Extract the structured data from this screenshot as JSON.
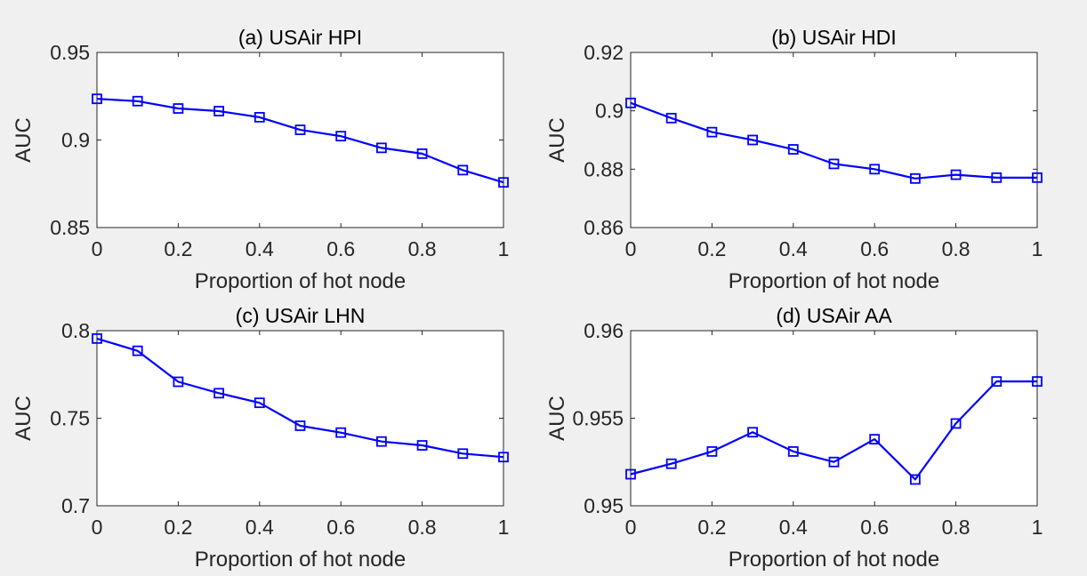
{
  "chart_data": [
    {
      "type": "line",
      "title": "(a) USAir HPI",
      "xlabel": "Proportion of hot node",
      "ylabel": "AUC",
      "xlim": [
        0,
        1
      ],
      "ylim": [
        0.85,
        0.95
      ],
      "xticks": [
        0,
        0.2,
        0.4,
        0.6,
        0.8,
        1
      ],
      "xtick_labels": [
        "0",
        "0.2",
        "0.4",
        "0.6",
        "0.8",
        "1"
      ],
      "yticks": [
        0.85,
        0.9,
        0.95
      ],
      "ytick_labels": [
        "0.85",
        "0.9",
        "0.95"
      ],
      "grid": false,
      "series": [
        {
          "x": [
            0,
            0.1,
            0.2,
            0.3,
            0.4,
            0.5,
            0.6,
            0.7,
            0.8,
            0.9,
            1
          ],
          "values": [
            0.9235,
            0.9222,
            0.918,
            0.9165,
            0.913,
            0.9058,
            0.9022,
            0.8955,
            0.8922,
            0.8828,
            0.8758
          ],
          "color": "#0000ff",
          "marker": "square"
        }
      ]
    },
    {
      "type": "line",
      "title": "(b) USAir HDI",
      "xlabel": "Proportion of hot node",
      "ylabel": "AUC",
      "xlim": [
        0,
        1
      ],
      "ylim": [
        0.86,
        0.92
      ],
      "xticks": [
        0,
        0.2,
        0.4,
        0.6,
        0.8,
        1
      ],
      "xtick_labels": [
        "0",
        "0.2",
        "0.4",
        "0.6",
        "0.8",
        "1"
      ],
      "yticks": [
        0.86,
        0.88,
        0.9,
        0.92
      ],
      "ytick_labels": [
        "0.86",
        "0.88",
        "0.9",
        "0.92"
      ],
      "grid": false,
      "series": [
        {
          "x": [
            0,
            0.1,
            0.2,
            0.3,
            0.4,
            0.5,
            0.6,
            0.7,
            0.8,
            0.9,
            1
          ],
          "values": [
            0.9027,
            0.8975,
            0.8927,
            0.89,
            0.8868,
            0.8818,
            0.88,
            0.8768,
            0.8781,
            0.8771,
            0.8771
          ],
          "color": "#0000ff",
          "marker": "square"
        }
      ]
    },
    {
      "type": "line",
      "title": "(c) USAir LHN",
      "xlabel": "Proportion of hot node",
      "ylabel": "AUC",
      "xlim": [
        0,
        1
      ],
      "ylim": [
        0.7,
        0.8
      ],
      "xticks": [
        0,
        0.2,
        0.4,
        0.6,
        0.8,
        1
      ],
      "xtick_labels": [
        "0",
        "0.2",
        "0.4",
        "0.6",
        "0.8",
        "1"
      ],
      "yticks": [
        0.7,
        0.75,
        0.8
      ],
      "ytick_labels": [
        "0.7",
        "0.75",
        "0.8"
      ],
      "grid": false,
      "series": [
        {
          "x": [
            0,
            0.1,
            0.2,
            0.3,
            0.4,
            0.5,
            0.6,
            0.7,
            0.8,
            0.9,
            1
          ],
          "values": [
            0.7955,
            0.7885,
            0.7708,
            0.7643,
            0.7588,
            0.7457,
            0.7418,
            0.7367,
            0.7345,
            0.7298,
            0.7278
          ],
          "color": "#0000ff",
          "marker": "square"
        }
      ]
    },
    {
      "type": "line",
      "title": "(d) USAir AA",
      "xlabel": "Proportion of hot node",
      "ylabel": "AUC",
      "xlim": [
        0,
        1
      ],
      "ylim": [
        0.95,
        0.96
      ],
      "xticks": [
        0,
        0.2,
        0.4,
        0.6,
        0.8,
        1
      ],
      "xtick_labels": [
        "0",
        "0.2",
        "0.4",
        "0.6",
        "0.8",
        "1"
      ],
      "yticks": [
        0.95,
        0.955,
        0.96
      ],
      "ytick_labels": [
        "0.95",
        "0.955",
        "0.96"
      ],
      "grid": false,
      "series": [
        {
          "x": [
            0,
            0.1,
            0.2,
            0.3,
            0.4,
            0.5,
            0.6,
            0.7,
            0.8,
            0.9,
            1
          ],
          "values": [
            0.9518,
            0.9524,
            0.9531,
            0.9542,
            0.9531,
            0.9525,
            0.9538,
            0.9515,
            0.9547,
            0.9571,
            0.9571
          ],
          "color": "#0000ff",
          "marker": "square"
        }
      ]
    }
  ]
}
